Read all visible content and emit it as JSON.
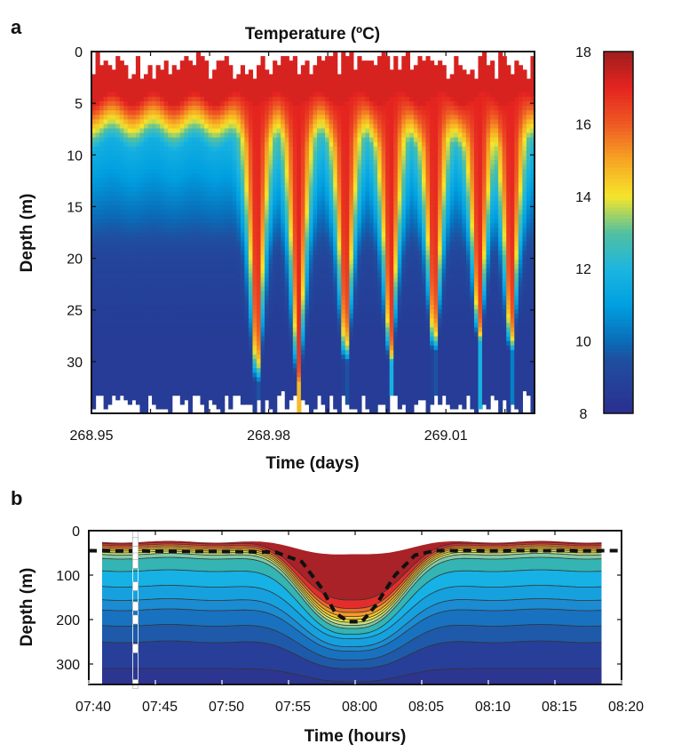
{
  "chart_data": [
    {
      "panel": "a",
      "type": "heatmap",
      "title": "Temperature (ºC)",
      "xlabel": "Time (days)",
      "ylabel": "Depth (m)",
      "xlim": [
        268.95,
        269.025
      ],
      "ylim": [
        35,
        0
      ],
      "xticks": [
        "268.95",
        "268.98",
        "269.01"
      ],
      "yticks": [
        "0",
        "5",
        "10",
        "15",
        "20",
        "25",
        "30"
      ],
      "colorbar": {
        "range": [
          8,
          18
        ],
        "ticks": [
          "8",
          "10",
          "12",
          "14",
          "16",
          "18"
        ],
        "colormap": "jet"
      },
      "surface_temperature": 17.2,
      "deep_temperature": 8.6,
      "thermocline_depth_m": 6.5,
      "warm_downwelling_events": [
        {
          "time": 268.978,
          "max_depth": 32
        },
        {
          "time": 268.985,
          "max_depth": 32
        },
        {
          "time": 268.993,
          "max_depth": 30
        },
        {
          "time": 269.0006,
          "max_depth": 30
        },
        {
          "time": 269.008,
          "max_depth": 29
        },
        {
          "time": 269.0156,
          "max_depth": 28
        },
        {
          "time": 269.021,
          "max_depth": 29
        }
      ]
    },
    {
      "panel": "b",
      "type": "contour",
      "xlabel": "Time (hours)",
      "ylabel": "Depth (m)",
      "xlim": [
        "07:40",
        "08:20"
      ],
      "ylim": [
        346,
        0
      ],
      "xticks": [
        "07:40",
        "07:45",
        "07:50",
        "07:55",
        "08:00",
        "08:05",
        "08:10",
        "08:15",
        "08:20"
      ],
      "yticks": [
        "0",
        "100",
        "200",
        "300"
      ],
      "data_time_range": [
        "07:41",
        "08:18.5"
      ],
      "isolines": [
        {
          "base_depth": 25,
          "dip": 30
        },
        {
          "base_depth": 28,
          "dip": 130
        },
        {
          "base_depth": 32,
          "dip": 145
        },
        {
          "base_depth": 36,
          "dip": 150
        },
        {
          "base_depth": 40,
          "dip": 155
        },
        {
          "base_depth": 44,
          "dip": 158
        },
        {
          "base_depth": 48,
          "dip": 160
        },
        {
          "base_depth": 53,
          "dip": 162
        },
        {
          "base_depth": 62,
          "dip": 160
        },
        {
          "base_depth": 90,
          "dip": 145
        },
        {
          "base_depth": 125,
          "dip": 120
        },
        {
          "base_depth": 155,
          "dip": 108
        },
        {
          "base_depth": 178,
          "dip": 95
        },
        {
          "base_depth": 213,
          "dip": 80
        },
        {
          "base_depth": 250,
          "dip": 62
        },
        {
          "base_depth": 310,
          "dip": 30
        },
        {
          "base_depth": 346,
          "dip": 0
        }
      ],
      "band_colors": [
        "#a82228",
        "#e42d2a",
        "#ee6a2a",
        "#f39a2b",
        "#f7c62c",
        "#f4e84a",
        "#c8df7c",
        "#7fcaa5",
        "#34b4b3",
        "#16b1e5",
        "#17a0de",
        "#1b8bd2",
        "#1872bf",
        "#1e5aa9",
        "#273f98",
        "#2c3590"
      ],
      "dashed_line": [
        [
          "07:40",
          45
        ],
        [
          "07:54",
          48
        ],
        [
          "07:56",
          70
        ],
        [
          "07:57.5",
          130
        ],
        [
          "07:58.5",
          185
        ],
        [
          "07:59.5",
          205
        ],
        [
          "08:00.5",
          205
        ],
        [
          "08:01.5",
          170
        ],
        [
          "08:03",
          100
        ],
        [
          "08:04.5",
          55
        ],
        [
          "08:06",
          45
        ],
        [
          "08:20",
          45
        ]
      ],
      "sensor_time": "07:43.5",
      "sensor_depths": [
        10,
        25,
        45,
        60,
        75,
        125,
        170,
        200,
        265,
        345
      ]
    }
  ],
  "labels": {
    "panel_a": "a",
    "panel_b": "b"
  }
}
